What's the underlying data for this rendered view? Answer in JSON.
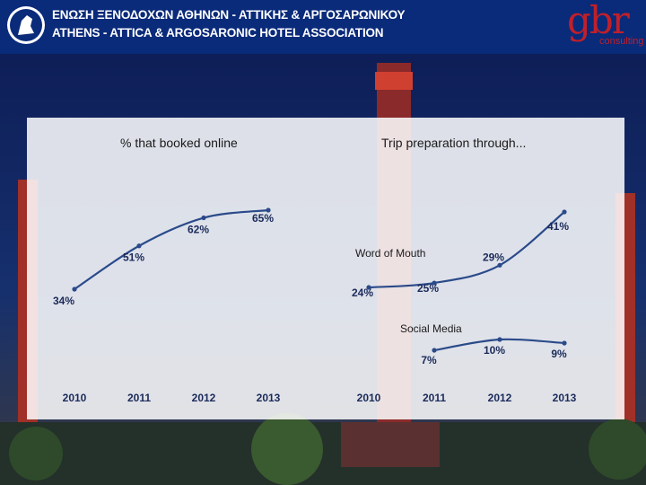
{
  "header": {
    "line1": "ΕΝΩΣΗ ΞΕΝΟΔΟΧΩΝ ΑΘΗΝΩΝ - ΑΤΤΙΚΗΣ & ΑΡΓΟΣΑΡΩΝΙΚΟΥ",
    "line2": "ATHENS - ATTICA & ARGOSARONIC HOTEL ASSOCIATION",
    "brand": "gbr",
    "brand_sub": "consulting",
    "brand_color": "#c0202a",
    "bar_color": "#0a2a7a"
  },
  "colors": {
    "line": "#2a4a8a",
    "text": "#1a2a5a"
  },
  "chart_data": [
    {
      "type": "line",
      "title": "% that booked online",
      "categories": [
        "2010",
        "2011",
        "2012",
        "2013"
      ],
      "series": [
        {
          "name": "Booked online",
          "values": [
            34,
            51,
            62,
            65
          ],
          "labels": [
            "34%",
            "51%",
            "62%",
            "65%"
          ]
        }
      ],
      "ylim": [
        30,
        70
      ]
    },
    {
      "type": "line",
      "title": "Trip preparation through...",
      "categories": [
        "2010",
        "2011",
        "2012",
        "2013"
      ],
      "series": [
        {
          "name": "Word of Mouth",
          "values": [
            24,
            25,
            29,
            41
          ],
          "labels": [
            "24%",
            "25%",
            "29%",
            "41%"
          ]
        },
        {
          "name": "Social Media",
          "values": [
            null,
            7,
            10,
            9
          ],
          "labels": [
            "",
            "7%",
            "10%",
            "9%"
          ]
        }
      ]
    }
  ]
}
